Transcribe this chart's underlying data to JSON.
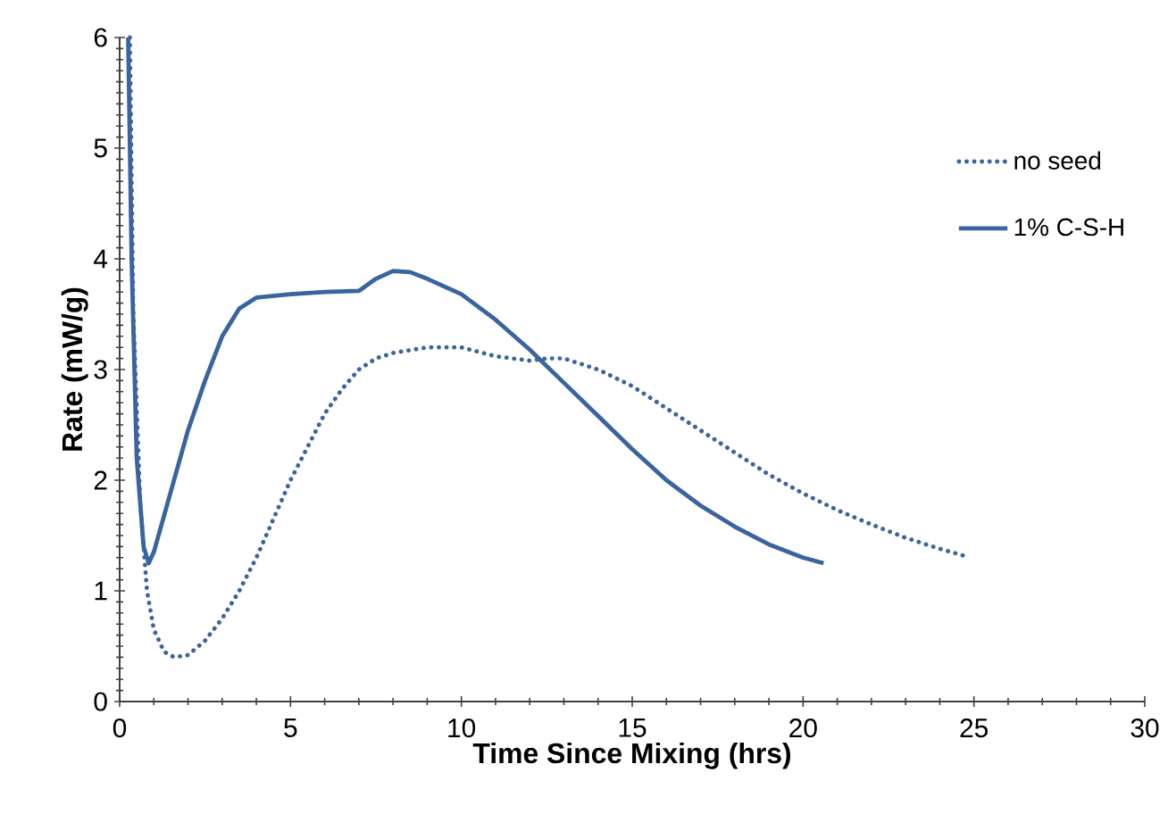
{
  "chart_data": {
    "type": "line",
    "xlabel": "Time Since Mixing (hrs)",
    "ylabel": "Rate (mW/g)",
    "xlim": [
      0,
      30
    ],
    "xticks": [
      0,
      5,
      10,
      15,
      20,
      25,
      30
    ],
    "ylim": [
      0,
      6
    ],
    "yticks": [
      0,
      1,
      2,
      3,
      4,
      5,
      6
    ],
    "legend": "top right",
    "series": [
      {
        "name": "no seed",
        "color": "#3a64a0",
        "line_style": "dotted",
        "x": [
          0.3,
          0.4,
          0.6,
          0.8,
          1.0,
          1.3,
          1.6,
          2,
          2.5,
          3,
          3.5,
          4,
          4.5,
          5,
          5.5,
          6,
          6.5,
          7,
          7.5,
          8,
          9,
          10,
          11,
          12,
          12.5,
          13,
          14,
          15,
          16,
          17,
          18,
          19,
          20,
          21,
          22,
          23,
          24,
          24.8
        ],
        "values": [
          6,
          3.5,
          1.8,
          1.0,
          0.65,
          0.45,
          0.4,
          0.42,
          0.55,
          0.75,
          1.0,
          1.3,
          1.65,
          2.0,
          2.3,
          2.6,
          2.82,
          3.0,
          3.1,
          3.15,
          3.2,
          3.2,
          3.12,
          3.08,
          3.1,
          3.1,
          3.0,
          2.85,
          2.65,
          2.45,
          2.25,
          2.05,
          1.88,
          1.73,
          1.6,
          1.48,
          1.38,
          1.31
        ]
      },
      {
        "name": "1% C-S-H",
        "color": "#3a64a0",
        "line_style": "solid",
        "x": [
          0.25,
          0.35,
          0.5,
          0.7,
          0.85,
          1.0,
          1.5,
          2,
          2.5,
          3,
          3.5,
          4,
          5,
          6,
          7,
          7.5,
          8,
          8.5,
          9,
          10,
          11,
          12,
          13,
          14,
          15,
          16,
          17,
          18,
          19,
          20,
          20.6
        ],
        "values": [
          6,
          4,
          2.2,
          1.4,
          1.25,
          1.35,
          1.9,
          2.45,
          2.9,
          3.3,
          3.55,
          3.65,
          3.68,
          3.7,
          3.71,
          3.82,
          3.89,
          3.88,
          3.82,
          3.68,
          3.45,
          3.18,
          2.88,
          2.58,
          2.28,
          2.0,
          1.77,
          1.58,
          1.42,
          1.3,
          1.25
        ]
      }
    ]
  }
}
